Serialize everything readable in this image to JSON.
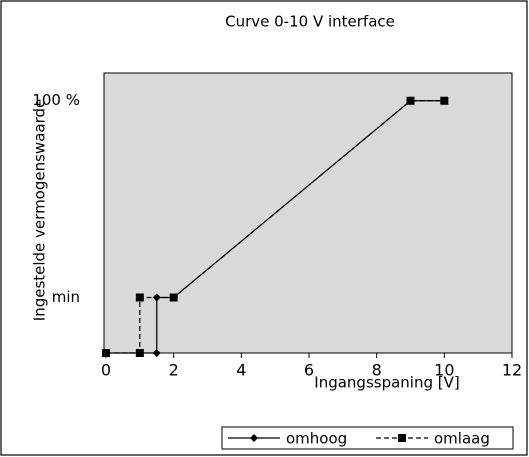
{
  "chart_data": {
    "type": "line",
    "title": "Curve 0-10 V interface",
    "xlabel": "Ingangsspaning [V]",
    "ylabel": "Ingestelde vermogenswaarde",
    "xlim": [
      0,
      12
    ],
    "xticks": [
      0,
      2,
      4,
      6,
      8,
      10,
      12
    ],
    "ylim": [
      0,
      111
    ],
    "yticks": [
      {
        "value": 22,
        "label": "min"
      },
      {
        "value": 100,
        "label": "100 %"
      }
    ],
    "plot_background": "#d9d9d9",
    "legend": "bottom-right",
    "series": [
      {
        "name": "omhoog",
        "color": "#000000",
        "line_style": "solid",
        "marker": "diamond",
        "x": [
          0,
          1.5,
          1.5,
          2,
          9,
          10
        ],
        "values": [
          0,
          0,
          22,
          22,
          100,
          100
        ]
      },
      {
        "name": "omlaag",
        "color": "#000000",
        "line_style": "dashed",
        "marker": "square",
        "x": [
          0,
          1,
          1,
          2,
          9,
          10
        ],
        "values": [
          0,
          0,
          22,
          22,
          100,
          100
        ]
      }
    ]
  }
}
